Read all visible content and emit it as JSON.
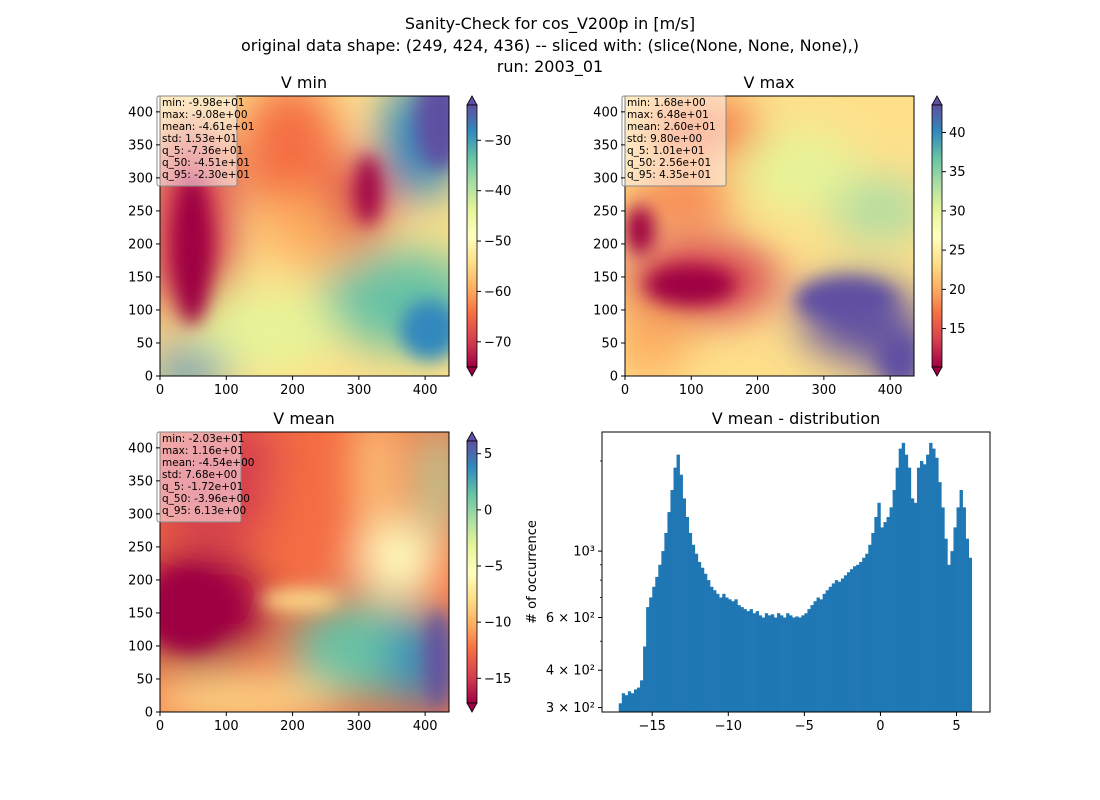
{
  "figure": {
    "title_lines": [
      "Sanity-Check for cos_V200p in [m/s]",
      "original data shape: (249, 424, 436) -- sliced with: (slice(None, None, None),)",
      "run: 2003_01"
    ]
  },
  "chart_data": [
    {
      "type": "heatmap",
      "title": "V min",
      "colormap": "Spectral",
      "xlim": [
        0,
        436
      ],
      "ylim": [
        0,
        424
      ],
      "xticks": [
        "0",
        "100",
        "200",
        "300",
        "400"
      ],
      "yticks": [
        "0",
        "50",
        "100",
        "150",
        "200",
        "250",
        "300",
        "350",
        "400"
      ],
      "colorbar_range": [
        -75,
        -23
      ],
      "colorbar_ticks": [
        "−70",
        "−60",
        "−50",
        "−40",
        "−30"
      ],
      "colorbar_extend": "both",
      "stats": [
        "min: -9.98e+01",
        "max: -9.08e+00",
        "mean: -4.61e+01",
        "std: 1.53e+01",
        "q_5: -7.36e+01",
        "q_50: -4.51e+01",
        "q_95: -2.30e+01"
      ]
    },
    {
      "type": "heatmap",
      "title": "V max",
      "colormap": "Spectral",
      "xlim": [
        0,
        436
      ],
      "ylim": [
        0,
        424
      ],
      "xticks": [
        "0",
        "100",
        "200",
        "300",
        "400"
      ],
      "yticks": [
        "0",
        "50",
        "100",
        "150",
        "200",
        "250",
        "300",
        "350",
        "400"
      ],
      "colorbar_range": [
        10.1,
        43.5
      ],
      "colorbar_ticks": [
        "15",
        "20",
        "25",
        "30",
        "35",
        "40"
      ],
      "colorbar_extend": "both",
      "stats": [
        "min: 1.68e+00",
        "max: 6.48e+01",
        "mean: 2.60e+01",
        "std: 9.80e+00",
        "q_5: 1.01e+01",
        "q_50: 2.56e+01",
        "q_95: 4.35e+01"
      ]
    },
    {
      "type": "heatmap",
      "title": "V mean",
      "colormap": "Spectral",
      "xlim": [
        0,
        436
      ],
      "ylim": [
        0,
        424
      ],
      "xticks": [
        "0",
        "100",
        "200",
        "300",
        "400"
      ],
      "yticks": [
        "0",
        "50",
        "100",
        "150",
        "200",
        "250",
        "300",
        "350",
        "400"
      ],
      "colorbar_range": [
        -17.2,
        6.13
      ],
      "colorbar_ticks": [
        "−15",
        "−10",
        "−5",
        "0",
        "5"
      ],
      "colorbar_extend": "both",
      "stats": [
        "min: -2.03e+01",
        "max: 1.16e+01",
        "mean: -4.54e+00",
        "std: 7.68e+00",
        "q_5: -1.72e+01",
        "q_50: -3.96e+00",
        "q_95: 6.13e+00"
      ]
    },
    {
      "type": "bar",
      "subtype": "histogram",
      "title": "V mean - distribution",
      "xlabel": "",
      "ylabel": "# of occurrence",
      "yscale": "log",
      "color": "#1f77b4",
      "xlim": [
        -18.3,
        7.2
      ],
      "ylim": [
        290,
        2500
      ],
      "xticks": [
        "−15",
        "−10",
        "−5",
        "0",
        "5"
      ],
      "yticks": [
        "3 × 10²",
        "4 × 10²",
        "6 × 10²",
        "10³"
      ],
      "x": [
        -17.1,
        -16.9,
        -16.7,
        -16.5,
        -16.3,
        -16.1,
        -15.9,
        -15.7,
        -15.5,
        -15.3,
        -15.1,
        -14.9,
        -14.7,
        -14.5,
        -14.3,
        -14.1,
        -13.9,
        -13.7,
        -13.5,
        -13.3,
        -13.1,
        -12.9,
        -12.7,
        -12.5,
        -12.3,
        -12.1,
        -11.9,
        -11.7,
        -11.5,
        -11.3,
        -11.1,
        -10.9,
        -10.7,
        -10.5,
        -10.3,
        -10.1,
        -9.9,
        -9.7,
        -9.5,
        -9.3,
        -9.1,
        -8.9,
        -8.7,
        -8.5,
        -8.3,
        -8.1,
        -7.9,
        -7.7,
        -7.5,
        -7.3,
        -7.1,
        -6.9,
        -6.7,
        -6.5,
        -6.3,
        -6.1,
        -5.9,
        -5.7,
        -5.5,
        -5.3,
        -5.1,
        -4.9,
        -4.7,
        -4.5,
        -4.3,
        -4.1,
        -3.9,
        -3.7,
        -3.5,
        -3.3,
        -3.1,
        -2.9,
        -2.7,
        -2.5,
        -2.3,
        -2.1,
        -1.9,
        -1.7,
        -1.5,
        -1.3,
        -1.1,
        -0.9,
        -0.7,
        -0.5,
        -0.3,
        -0.1,
        0.1,
        0.3,
        0.5,
        0.7,
        0.9,
        1.1,
        1.3,
        1.5,
        1.7,
        1.9,
        2.1,
        2.3,
        2.5,
        2.7,
        2.9,
        3.1,
        3.3,
        3.5,
        3.7,
        3.9,
        4.1,
        4.3,
        4.5,
        4.7,
        4.9,
        5.1,
        5.3,
        5.5,
        5.7,
        5.9
      ],
      "values": [
        310,
        335,
        330,
        340,
        335,
        345,
        350,
        370,
        480,
        650,
        700,
        760,
        820,
        900,
        1000,
        1150,
        1350,
        1600,
        1900,
        2100,
        1800,
        1500,
        1300,
        1150,
        1050,
        980,
        920,
        880,
        840,
        800,
        760,
        740,
        720,
        700,
        720,
        700,
        690,
        680,
        690,
        660,
        650,
        640,
        630,
        640,
        620,
        630,
        610,
        600,
        620,
        610,
        615,
        600,
        620,
        610,
        600,
        620,
        610,
        600,
        605,
        600,
        610,
        620,
        640,
        660,
        680,
        700,
        690,
        720,
        740,
        760,
        780,
        800,
        790,
        810,
        830,
        850,
        870,
        890,
        900,
        920,
        950,
        980,
        1050,
        1150,
        1300,
        1450,
        1200,
        1250,
        1300,
        1400,
        1600,
        1900,
        2200,
        2300,
        2100,
        1900,
        1500,
        1450,
        1900,
        2000,
        1950,
        2100,
        2300,
        2200,
        2050,
        1700,
        1400,
        1100,
        900,
        1000,
        1200,
        1400,
        1600,
        1400,
        1100,
        950
      ]
    }
  ]
}
